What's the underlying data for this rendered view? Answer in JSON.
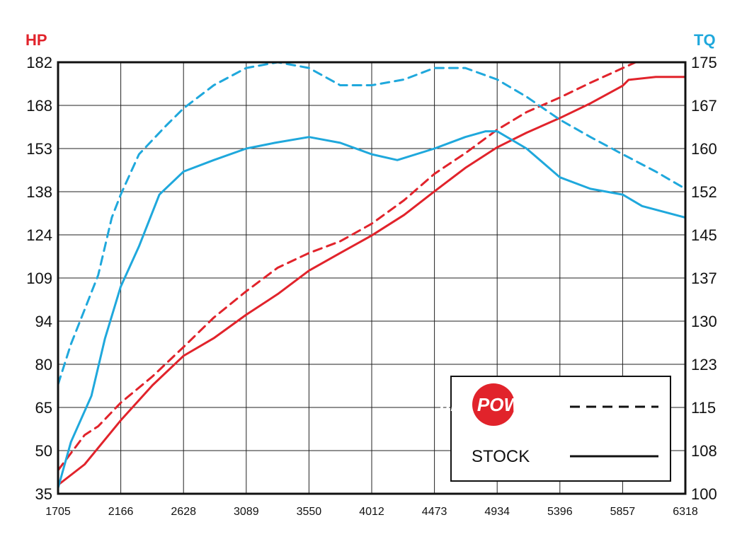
{
  "chart_data": {
    "type": "line",
    "xlabel": "",
    "ylabel_left": "HP",
    "ylabel_right": "TQ",
    "x_ticks": [
      1705,
      2166,
      2628,
      3089,
      3550,
      4012,
      4473,
      4934,
      5396,
      5857,
      6318
    ],
    "y_left_ticks": [
      35,
      50,
      65,
      80,
      94,
      109,
      124,
      138,
      153,
      168,
      182
    ],
    "y_right_ticks": [
      100,
      108,
      115,
      123,
      130,
      137,
      145,
      152,
      160,
      167,
      175
    ],
    "xlim": [
      1705,
      6318
    ],
    "ylim_left": [
      35,
      182
    ],
    "ylim_right": [
      100,
      175
    ],
    "grid": true,
    "legend_position": "bottom-right",
    "colors": {
      "hp": "#e1232b",
      "tq": "#1fa8dc",
      "left_axis": "#e1232b",
      "right_axis": "#1fa8dc"
    },
    "legend": [
      {
        "label": "aFe POWER",
        "style": "dashed",
        "logo": true
      },
      {
        "label": "STOCK",
        "style": "solid"
      }
    ],
    "series": [
      {
        "name": "HP",
        "source": "aFe POWER",
        "axis": "left",
        "style": "dashed",
        "x": [
          1705,
          1900,
          2000,
          2166,
          2400,
          2628,
          2850,
          3089,
          3320,
          3550,
          3780,
          4012,
          4250,
          4473,
          4700,
          4934,
          5150,
          5396,
          5620,
          5857,
          6000
        ],
        "y": [
          43,
          55,
          58,
          66,
          75,
          85,
          95,
          104,
          112,
          117,
          121,
          127,
          135,
          144,
          151,
          159,
          165,
          170,
          175,
          180,
          183
        ]
      },
      {
        "name": "HP",
        "source": "STOCK",
        "axis": "left",
        "style": "solid",
        "x": [
          1705,
          1900,
          2166,
          2400,
          2628,
          2850,
          3089,
          3320,
          3550,
          3780,
          4012,
          4250,
          4473,
          4700,
          4934,
          5150,
          5396,
          5620,
          5857,
          5900,
          6100,
          6318
        ],
        "y": [
          38,
          45,
          60,
          72,
          82,
          88,
          96,
          103,
          111,
          117,
          123,
          130,
          138,
          146,
          153,
          158,
          163,
          168,
          174,
          176,
          177,
          177
        ]
      },
      {
        "name": "TQ",
        "source": "aFe POWER",
        "axis": "right",
        "style": "dashed",
        "x": [
          1705,
          1800,
          1900,
          2000,
          2100,
          2166,
          2300,
          2500,
          2628,
          2850,
          3089,
          3320,
          3550,
          3780,
          4012,
          4250,
          4473,
          4700,
          4934,
          5150,
          5396,
          5620,
          5857,
          6100,
          6318
        ],
        "y": [
          119,
          126,
          132,
          138,
          148,
          152,
          159,
          164,
          167,
          171,
          174,
          175,
          174,
          171,
          171,
          172,
          174,
          174,
          172,
          169,
          165,
          162,
          159,
          156,
          153
        ]
      },
      {
        "name": "TQ",
        "source": "STOCK",
        "axis": "right",
        "style": "solid",
        "x": [
          1705,
          1800,
          1950,
          2050,
          2166,
          2300,
          2450,
          2628,
          2850,
          3089,
          3300,
          3550,
          3780,
          4012,
          4200,
          4473,
          4700,
          4850,
          4934,
          5150,
          5396,
          5620,
          5857,
          6000,
          6318
        ],
        "y": [
          101,
          109,
          117,
          127,
          136,
          143,
          152,
          156,
          158,
          160,
          161,
          162,
          161,
          159,
          158,
          160,
          162,
          163,
          163,
          160,
          155,
          153,
          152,
          150,
          148
        ]
      }
    ]
  }
}
